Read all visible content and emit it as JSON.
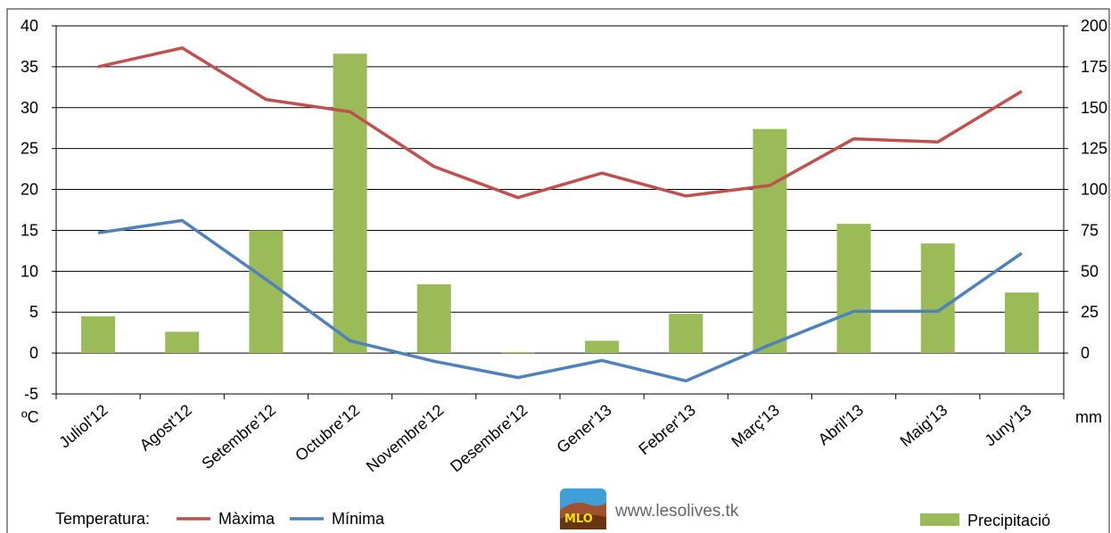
{
  "chart_data": {
    "type": "bar+line",
    "categories": [
      "Juliol'12",
      "Agost'12",
      "Setembre'12",
      "Octubre'12",
      "Novembre'12",
      "Desembre'12",
      "Gener'13",
      "Febrer'13",
      "Març'13",
      "Abril'13",
      "Maig'13",
      "Juny'13"
    ],
    "left_axis": {
      "unit": "ºC",
      "range": [
        -5,
        40
      ],
      "ticks": [
        "40",
        "35",
        "30",
        "25",
        "20",
        "15",
        "10",
        "5",
        "0",
        "-5"
      ]
    },
    "right_axis": {
      "unit": "mm",
      "range": [
        -25,
        200
      ],
      "ticks": [
        "200",
        "175",
        "150",
        "125",
        "100",
        "75",
        "50",
        "25",
        "0"
      ]
    },
    "series": [
      {
        "name": "Màxima",
        "type": "line",
        "axis": "left",
        "color": "#c0504d",
        "values": [
          35,
          37.3,
          31,
          29.5,
          22.8,
          19,
          22,
          19.2,
          20.5,
          26.2,
          25.8,
          32
        ]
      },
      {
        "name": "Mínima",
        "type": "line",
        "axis": "left",
        "color": "#4f81bd",
        "values": [
          14.7,
          16.2,
          9,
          1.5,
          -1,
          -3,
          -0.9,
          -3.4,
          1,
          5.1,
          5.1,
          12.2
        ]
      },
      {
        "name": "Precipitació",
        "type": "bar",
        "axis": "right",
        "color": "#9bbb59",
        "values": [
          22.5,
          13,
          75,
          183,
          42,
          0.5,
          7.5,
          24,
          137,
          79,
          67,
          37
        ]
      }
    ],
    "grid": "horizontal",
    "legend": {
      "prefix": "Temperatura:",
      "position": "bottom"
    }
  },
  "watermark": {
    "logo_text": "MLO",
    "url": "www.lesolives.tk"
  }
}
